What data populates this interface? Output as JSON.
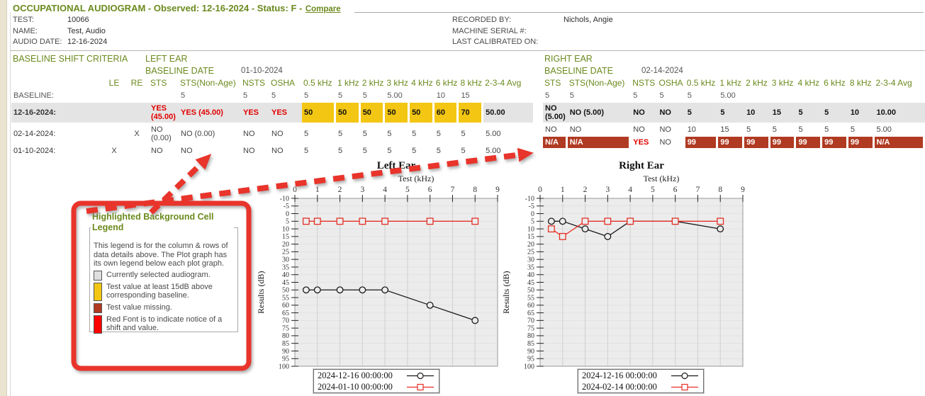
{
  "header": {
    "title": "OCCUPATIONAL AUDIOGRAM - Observed: 12-16-2024 - Status: F -",
    "compare_link": "Compare",
    "info_left": [
      {
        "label": "TEST:",
        "value": "10066"
      },
      {
        "label": "NAME:",
        "value": "Test, Audio"
      },
      {
        "label": "AUDIO DATE:",
        "value": "12-16-2024"
      }
    ],
    "info_right": [
      {
        "label": "RECORDED BY:",
        "value": "Nichols, Angie"
      },
      {
        "label": "MACHINE SERIAL #:",
        "value": ""
      },
      {
        "label": "LAST CALIBRATED ON:",
        "value": ""
      }
    ]
  },
  "criteria": {
    "section_title": "BASELINE SHIFT CRITERIA",
    "left_ear": {
      "title": "LEFT EAR",
      "baseline_date_label": "BASELINE DATE",
      "baseline_date": "01-10-2024"
    },
    "right_ear": {
      "title": "RIGHT EAR",
      "baseline_date_label": "BASELINE DATE",
      "baseline_date": "02-14-2024"
    },
    "left_columns": [
      "LE",
      "RE",
      "STS",
      "STS(Non-Age)",
      "NSTS",
      "OSHA",
      "0.5 kHz",
      "1 kHz",
      "2 kHz",
      "3 kHz",
      "4 kHz",
      "6 kHz",
      "8 kHz",
      "2-3-4 Avg"
    ],
    "right_columns": [
      "STS",
      "STS(Non-Age)",
      "NSTS",
      "OSHA",
      "0.5 kHz",
      "1 kHz",
      "2 kHz",
      "3 kHz",
      "4 kHz",
      "6 kHz",
      "8 kHz",
      "2-3-4 Avg"
    ],
    "rows": [
      {
        "label": "BASELINE:",
        "selected": false,
        "baseline": true,
        "left": {
          "le": "",
          "re": "",
          "cells": [
            [
              "",
              ""
            ],
            [
              "5",
              ""
            ],
            [
              "5",
              ""
            ],
            [
              "5",
              ""
            ],
            [
              "5",
              ""
            ],
            [
              "5",
              ""
            ],
            [
              "5",
              ""
            ],
            [
              "5.00",
              ""
            ],
            [
              "",
              ""
            ],
            [
              "10",
              ""
            ],
            [
              "15",
              ""
            ],
            [
              "",
              ""
            ]
          ]
        },
        "right": {
          "cells": [
            [
              "5",
              ""
            ],
            [
              "5",
              ""
            ],
            [
              "5",
              ""
            ],
            [
              "5",
              ""
            ],
            [
              "5",
              ""
            ],
            [
              "5.00",
              ""
            ],
            [
              "",
              ""
            ],
            [
              "",
              ""
            ],
            [
              "",
              ""
            ],
            [
              "",
              ""
            ],
            [
              "",
              ""
            ],
            [
              "",
              ""
            ]
          ]
        }
      },
      {
        "label": "12-16-2024:",
        "selected": true,
        "baseline": false,
        "left": {
          "le": "",
          "re": "",
          "cells": [
            [
              "YES (45.00)",
              "r"
            ],
            [
              "YES (45.00)",
              "r"
            ],
            [
              "YES",
              "r"
            ],
            [
              "YES",
              "r"
            ],
            [
              "50",
              "y"
            ],
            [
              "50",
              "y"
            ],
            [
              "50",
              "y"
            ],
            [
              "50",
              "y"
            ],
            [
              "50",
              "y"
            ],
            [
              "60",
              "y"
            ],
            [
              "70",
              "y"
            ],
            [
              "50.00",
              "b"
            ]
          ]
        },
        "right": {
          "cells": [
            [
              "NO (5.00)",
              "b"
            ],
            [
              "NO (5.00)",
              "b"
            ],
            [
              "NO",
              "b"
            ],
            [
              "NO",
              "b"
            ],
            [
              "5",
              "b"
            ],
            [
              "5",
              "b"
            ],
            [
              "10",
              "b"
            ],
            [
              "15",
              "b"
            ],
            [
              "5",
              "b"
            ],
            [
              "5",
              "b"
            ],
            [
              "10",
              "b"
            ],
            [
              "10.00",
              "b"
            ]
          ]
        }
      },
      {
        "label": "02-14-2024:",
        "selected": false,
        "baseline": false,
        "left": {
          "le": "",
          "re": "X",
          "cells": [
            [
              "NO (0.00)",
              ""
            ],
            [
              "NO (0.00)",
              ""
            ],
            [
              "NO",
              ""
            ],
            [
              "NO",
              ""
            ],
            [
              "5",
              ""
            ],
            [
              "5",
              ""
            ],
            [
              "5",
              ""
            ],
            [
              "5",
              ""
            ],
            [
              "5",
              ""
            ],
            [
              "5",
              ""
            ],
            [
              "5",
              ""
            ],
            [
              "5.00",
              ""
            ]
          ]
        },
        "right": {
          "cells": [
            [
              "NO",
              ""
            ],
            [
              "NO",
              ""
            ],
            [
              "NO",
              ""
            ],
            [
              "NO",
              ""
            ],
            [
              "10",
              ""
            ],
            [
              "15",
              ""
            ],
            [
              "5",
              ""
            ],
            [
              "5",
              ""
            ],
            [
              "5",
              ""
            ],
            [
              "5",
              ""
            ],
            [
              "5",
              ""
            ],
            [
              "5.00",
              ""
            ]
          ]
        }
      },
      {
        "label": "01-10-2024:",
        "selected": false,
        "baseline": false,
        "left": {
          "le": "X",
          "re": "",
          "cells": [
            [
              "NO",
              ""
            ],
            [
              "NO",
              ""
            ],
            [
              "NO",
              ""
            ],
            [
              "NO",
              ""
            ],
            [
              "5",
              ""
            ],
            [
              "5",
              ""
            ],
            [
              "5",
              ""
            ],
            [
              "5",
              ""
            ],
            [
              "5",
              ""
            ],
            [
              "5",
              ""
            ],
            [
              "5",
              ""
            ],
            [
              "5.00",
              ""
            ]
          ]
        },
        "right": {
          "cells": [
            [
              "N/A",
              "m"
            ],
            [
              "N/A",
              "m"
            ],
            [
              "YES",
              "r"
            ],
            [
              "NO",
              ""
            ],
            [
              "99",
              "m"
            ],
            [
              "99",
              "m"
            ],
            [
              "99",
              "m"
            ],
            [
              "99",
              "m"
            ],
            [
              "99",
              "m"
            ],
            [
              "99",
              "m"
            ],
            [
              "99",
              "m"
            ],
            [
              "N/A",
              "m"
            ]
          ]
        }
      }
    ]
  },
  "cell_legend": {
    "title": "Highlighted Background Cell Legend",
    "description": "This legend is for the column & rows of data details above. The Plot graph has its own legend below each plot graph.",
    "items": [
      {
        "name": "selected",
        "color": "#DFDFDF",
        "label": "Currently selected audiogram."
      },
      {
        "name": "above-baseline",
        "color": "#F3C613",
        "label": "Test value at least 15dB above corresponding baseline."
      },
      {
        "name": "missing",
        "color": "#B03A22",
        "label": "Test value missing."
      },
      {
        "name": "shift-font",
        "color": "#FF0000",
        "label": "Red Font is to indicate notice of a shift and value."
      }
    ]
  },
  "chart_data": [
    {
      "type": "line",
      "title": "Left Ear",
      "xlabel": "Test (kHz)",
      "ylabel": "Results (dB)",
      "xlim": [
        0,
        9
      ],
      "ylim": [
        -10,
        100
      ],
      "y_inverted": true,
      "grid": true,
      "legend_position": "below",
      "x": [
        0.5,
        1,
        2,
        3,
        4,
        6,
        8
      ],
      "series": [
        {
          "name": "2024-12-16 00:00:00",
          "color": "#1A1A1A",
          "marker": "circle",
          "values": [
            50,
            50,
            50,
            50,
            50,
            60,
            70
          ]
        },
        {
          "name": "2024-01-10 00:00:00",
          "color": "#E53026",
          "marker": "square",
          "values": [
            5,
            5,
            5,
            5,
            5,
            5,
            5
          ]
        }
      ]
    },
    {
      "type": "line",
      "title": "Right Ear",
      "xlabel": "Test (kHz)",
      "ylabel": "Results (dB)",
      "xlim": [
        0,
        9
      ],
      "ylim": [
        -10,
        100
      ],
      "y_inverted": true,
      "grid": true,
      "legend_position": "below",
      "x": [
        0.5,
        1,
        2,
        3,
        4,
        6,
        8
      ],
      "series": [
        {
          "name": "2024-12-16 00:00:00",
          "color": "#1A1A1A",
          "marker": "circle",
          "values": [
            5,
            5,
            10,
            15,
            5,
            5,
            10
          ]
        },
        {
          "name": "2024-02-14 00:00:00",
          "color": "#E53026",
          "marker": "square",
          "values": [
            10,
            15,
            5,
            5,
            5,
            5,
            5
          ]
        }
      ]
    }
  ],
  "colors": {
    "heading_green": "#6B8A1D",
    "selected_bg": "#E4E4E4",
    "warn_bg": "#F3C613",
    "missing_bg": "#B03A22",
    "shift_font": "#E10000",
    "annotation_red": "#E8342B",
    "margin_strip": "#EAE3CF"
  }
}
